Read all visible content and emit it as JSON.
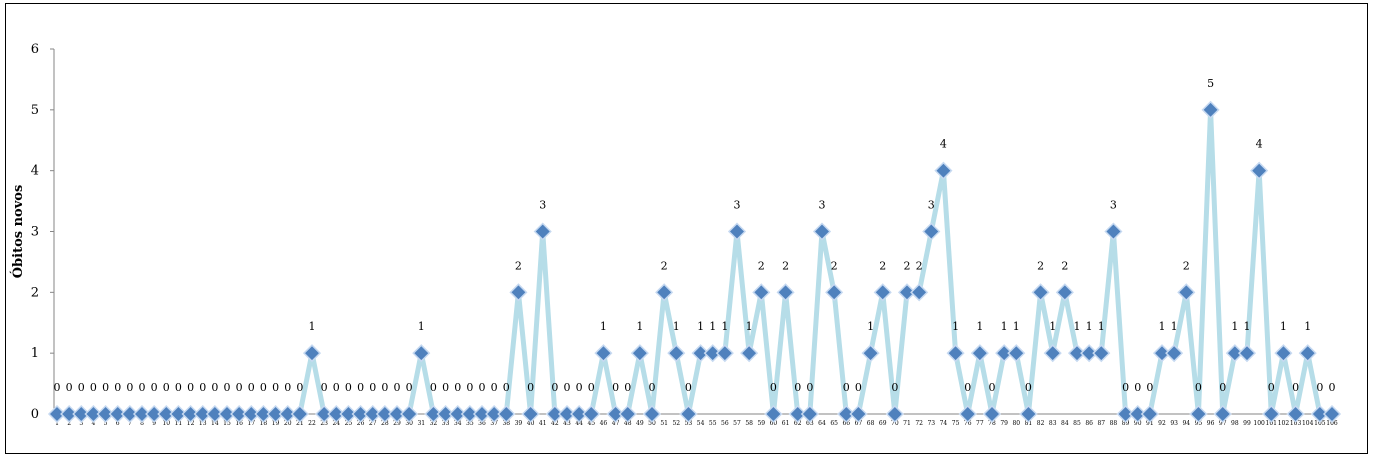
{
  "chart_data": {
    "type": "line",
    "title": "",
    "xlabel": "",
    "ylabel": "Óbitos novos",
    "ylim": [
      0,
      6
    ],
    "yticks": [
      0,
      1,
      2,
      3,
      4,
      5,
      6
    ],
    "grid": false,
    "legend": "none",
    "x": [
      1,
      2,
      3,
      4,
      5,
      6,
      7,
      8,
      9,
      10,
      11,
      12,
      13,
      14,
      15,
      16,
      17,
      18,
      19,
      20,
      21,
      22,
      23,
      24,
      25,
      26,
      27,
      28,
      29,
      30,
      31,
      32,
      33,
      34,
      35,
      36,
      37,
      38,
      39,
      40,
      41,
      42,
      43,
      44,
      45,
      46,
      47,
      48,
      49,
      50,
      51,
      52,
      53,
      54,
      55,
      56,
      57,
      58,
      59,
      60,
      61,
      62,
      63,
      64,
      65,
      66,
      67,
      68,
      69,
      70,
      71,
      72,
      73,
      74,
      75,
      76,
      77,
      78,
      79,
      80,
      81,
      82,
      83,
      84,
      85,
      86,
      87,
      88,
      89,
      90,
      91,
      92,
      93,
      94,
      95,
      96,
      97,
      98,
      99,
      100,
      101,
      102,
      103,
      104,
      105,
      106
    ],
    "series": [
      {
        "values": [
          0,
          0,
          0,
          0,
          0,
          0,
          0,
          0,
          0,
          0,
          0,
          0,
          0,
          0,
          0,
          0,
          0,
          0,
          0,
          0,
          0,
          1,
          0,
          0,
          0,
          0,
          0,
          0,
          0,
          0,
          1,
          0,
          0,
          0,
          0,
          0,
          0,
          0,
          2,
          0,
          3,
          0,
          0,
          0,
          0,
          1,
          0,
          0,
          1,
          0,
          2,
          1,
          0,
          1,
          1,
          1,
          3,
          1,
          2,
          0,
          2,
          0,
          0,
          3,
          2,
          0,
          0,
          1,
          2,
          0,
          2,
          2,
          3,
          4,
          1,
          0,
          1,
          0,
          1,
          1,
          0,
          2,
          1,
          2,
          1,
          1,
          1,
          3,
          0,
          0,
          0,
          1,
          1,
          2,
          0,
          5,
          0,
          1,
          1,
          4,
          0,
          1,
          0,
          1,
          0,
          0
        ],
        "line_color": "#b6dde8",
        "marker_color": "#4f81bd"
      }
    ]
  }
}
